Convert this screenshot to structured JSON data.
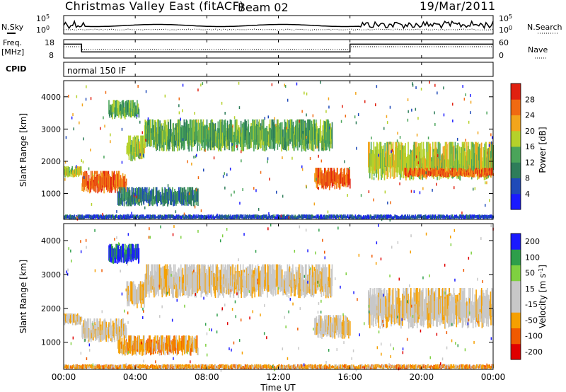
{
  "header": {
    "station": "Christmas Valley East (fitACF)",
    "beam": "Beam 02",
    "date": "19/Mar/2011"
  },
  "noise_panel": {
    "left_label": "N.Sky",
    "right_label": "N.Search",
    "tick_top": "10^5",
    "tick_bottom": "10^0",
    "tick_top_right": "10^5",
    "tick_bottom_right": "10^0"
  },
  "freq_panel": {
    "left_label_1": "Freq.",
    "left_label_2": "[MHz]",
    "right_label": "Nave",
    "left_ticks": [
      "18",
      "8"
    ],
    "right_ticks": [
      "60",
      "0"
    ],
    "freq_segments": [
      {
        "t0": 0.0,
        "t1": 1.0,
        "v": 16
      },
      {
        "t0": 1.0,
        "t1": 16.0,
        "v": 11
      },
      {
        "t0": 16.0,
        "t1": 24.0,
        "v": 16
      }
    ],
    "freq_range": [
      8,
      18
    ]
  },
  "cpid_panel": {
    "label": "CPID",
    "program": "normal 150 IF"
  },
  "colors": {
    "power": [
      "#1a1aff",
      "#1f4ab8",
      "#2e7d5a",
      "#4aa45a",
      "#b5d12a",
      "#f2a51c",
      "#f06a12",
      "#e02010"
    ],
    "velocity": [
      "#e00000",
      "#f05a00",
      "#f5a000",
      "#c8c8c8",
      "#c8c8c8",
      "#7fd040",
      "#2e9e4a",
      "#1a1aff"
    ]
  },
  "chart_data": [
    {
      "type": "heatmap",
      "name": "power",
      "xlabel": "Time UT",
      "ylabel": "Slant Range [km]",
      "xlim": [
        0,
        24
      ],
      "ylim": [
        200,
        4500
      ],
      "xticks": [
        "00:00",
        "04:00",
        "08:00",
        "12:00",
        "16:00",
        "20:00",
        "00:00"
      ],
      "yticks": [
        1000,
        2000,
        3000,
        4000
      ],
      "colorbar_label": "Power [dB]",
      "colorbar_ticks": [
        "28",
        "24",
        "20",
        "16",
        "12",
        "8",
        "4"
      ],
      "features": [
        {
          "t0": 0.0,
          "t1": 1.0,
          "r0": 1500,
          "r1": 1850,
          "level": 4
        },
        {
          "t0": 1.0,
          "t1": 3.5,
          "r0": 1000,
          "r1": 1700,
          "level": 6
        },
        {
          "t0": 3.5,
          "t1": 4.5,
          "r0": 2000,
          "r1": 2800,
          "level": 4
        },
        {
          "t0": 2.5,
          "t1": 4.2,
          "r0": 3300,
          "r1": 3900,
          "level": 3
        },
        {
          "t0": 4.5,
          "t1": 15.0,
          "r0": 2300,
          "r1": 3300,
          "level": 3
        },
        {
          "t0": 14.0,
          "t1": 16.0,
          "r0": 1100,
          "r1": 1800,
          "level": 6
        },
        {
          "t0": 17.0,
          "t1": 24.0,
          "r0": 1400,
          "r1": 2600,
          "level": 4
        },
        {
          "t0": 19.0,
          "t1": 24.0,
          "r0": 1500,
          "r1": 1800,
          "level": 6
        },
        {
          "t0": 3.0,
          "t1": 7.5,
          "r0": 600,
          "r1": 1200,
          "level": 2
        },
        {
          "t0": 0.0,
          "t1": 24.0,
          "r0": 200,
          "r1": 350,
          "level": 1
        }
      ]
    },
    {
      "type": "heatmap",
      "name": "velocity",
      "xlabel": "Time UT",
      "ylabel": "Slant Range [km]",
      "xlim": [
        0,
        24
      ],
      "ylim": [
        200,
        4500
      ],
      "xticks": [
        "00:00",
        "04:00",
        "08:00",
        "12:00",
        "16:00",
        "20:00",
        "00:00"
      ],
      "yticks": [
        1000,
        2000,
        3000,
        4000
      ],
      "colorbar_label": "Velocity [m s^-1]",
      "colorbar_ticks": [
        "200",
        "100",
        "50",
        "15",
        "-15",
        "-50",
        "-100",
        "-200"
      ],
      "features": [
        {
          "t0": 0.0,
          "t1": 1.0,
          "r0": 1500,
          "r1": 1850,
          "level": 3
        },
        {
          "t0": 1.0,
          "t1": 3.5,
          "r0": 1000,
          "r1": 1700,
          "level": 3
        },
        {
          "t0": 3.5,
          "t1": 4.5,
          "r0": 2000,
          "r1": 2800,
          "level": 3
        },
        {
          "t0": 2.5,
          "t1": 4.2,
          "r0": 3300,
          "r1": 3900,
          "level": 7
        },
        {
          "t0": 4.5,
          "t1": 15.0,
          "r0": 2300,
          "r1": 3300,
          "level": 3
        },
        {
          "t0": 14.0,
          "t1": 16.0,
          "r0": 1100,
          "r1": 1800,
          "level": 3
        },
        {
          "t0": 17.0,
          "t1": 24.0,
          "r0": 1400,
          "r1": 2600,
          "level": 3
        },
        {
          "t0": 3.0,
          "t1": 7.5,
          "r0": 600,
          "r1": 1200,
          "level": 2
        },
        {
          "t0": 0.0,
          "t1": 24.0,
          "r0": 200,
          "r1": 350,
          "level": 2
        }
      ]
    }
  ]
}
